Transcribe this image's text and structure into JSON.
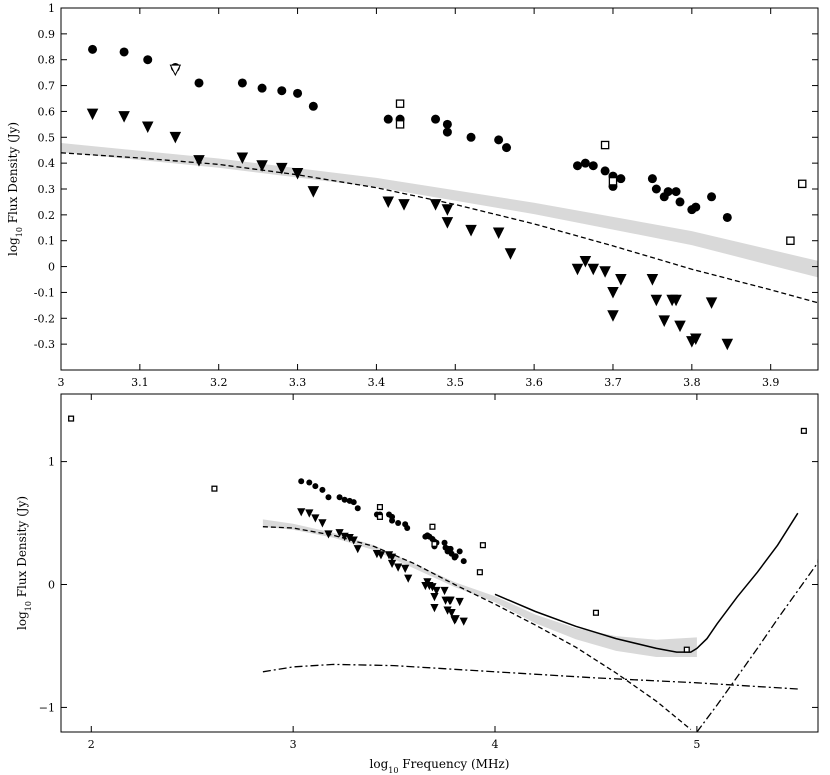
{
  "chart_data": [
    {
      "type": "scatter",
      "title": "",
      "xlabel": "",
      "ylabel": "log10 Flux Density (Jy)",
      "ylabel_parts": {
        "pre": "log",
        "sub": "10",
        "post": " Flux Density (Jy)"
      },
      "xlim": [
        3.0,
        3.96
      ],
      "ylim": [
        -0.4,
        1.0
      ],
      "grid": false,
      "xticks": [
        3.0,
        3.1,
        3.2,
        3.3,
        3.4,
        3.5,
        3.6,
        3.7,
        3.8,
        3.9
      ],
      "xtick_labels": [
        "3",
        "3.1",
        "3.2",
        "3.3",
        "3.4",
        "3.5",
        "3.6",
        "3.7",
        "3.8",
        "3.9"
      ],
      "yticks": [
        -0.3,
        -0.2,
        -0.1,
        0,
        0.1,
        0.2,
        0.3,
        0.4,
        0.5,
        0.6,
        0.7,
        0.8,
        0.9,
        1
      ],
      "ytick_labels": [
        "-0.3",
        "-0.2",
        "-0.1",
        "0",
        "0.1",
        "0.2",
        "0.3",
        "0.4",
        "0.5",
        "0.6",
        "0.7",
        "0.8",
        "0.9",
        "1"
      ],
      "series": [
        {
          "marker": "filled-circle",
          "points": [
            [
              3.04,
              0.84
            ],
            [
              3.08,
              0.83
            ],
            [
              3.11,
              0.8
            ],
            [
              3.145,
              0.77
            ],
            [
              3.175,
              0.71
            ],
            [
              3.23,
              0.71
            ],
            [
              3.255,
              0.69
            ],
            [
              3.28,
              0.68
            ],
            [
              3.3,
              0.67
            ],
            [
              3.32,
              0.62
            ],
            [
              3.415,
              0.57
            ],
            [
              3.43,
              0.57
            ],
            [
              3.475,
              0.57
            ],
            [
              3.49,
              0.55
            ],
            [
              3.49,
              0.52
            ],
            [
              3.52,
              0.5
            ],
            [
              3.555,
              0.49
            ],
            [
              3.565,
              0.46
            ],
            [
              3.655,
              0.39
            ],
            [
              3.665,
              0.4
            ],
            [
              3.675,
              0.39
            ],
            [
              3.69,
              0.37
            ],
            [
              3.7,
              0.35
            ],
            [
              3.7,
              0.31
            ],
            [
              3.71,
              0.34
            ],
            [
              3.75,
              0.34
            ],
            [
              3.755,
              0.3
            ],
            [
              3.765,
              0.27
            ],
            [
              3.77,
              0.29
            ],
            [
              3.78,
              0.29
            ],
            [
              3.785,
              0.25
            ],
            [
              3.8,
              0.22
            ],
            [
              3.805,
              0.23
            ],
            [
              3.825,
              0.27
            ],
            [
              3.845,
              0.19
            ]
          ]
        },
        {
          "marker": "filled-triangle-down",
          "points": [
            [
              3.04,
              0.59
            ],
            [
              3.08,
              0.58
            ],
            [
              3.11,
              0.54
            ],
            [
              3.145,
              0.5
            ],
            [
              3.175,
              0.41
            ],
            [
              3.23,
              0.42
            ],
            [
              3.255,
              0.39
            ],
            [
              3.28,
              0.38
            ],
            [
              3.3,
              0.36
            ],
            [
              3.32,
              0.29
            ],
            [
              3.415,
              0.25
            ],
            [
              3.435,
              0.24
            ],
            [
              3.475,
              0.24
            ],
            [
              3.49,
              0.22
            ],
            [
              3.49,
              0.17
            ],
            [
              3.52,
              0.14
            ],
            [
              3.555,
              0.13
            ],
            [
              3.57,
              0.05
            ],
            [
              3.655,
              -0.01
            ],
            [
              3.665,
              0.02
            ],
            [
              3.675,
              -0.01
            ],
            [
              3.69,
              -0.02
            ],
            [
              3.7,
              -0.1
            ],
            [
              3.7,
              -0.19
            ],
            [
              3.71,
              -0.05
            ],
            [
              3.75,
              -0.05
            ],
            [
              3.755,
              -0.13
            ],
            [
              3.765,
              -0.21
            ],
            [
              3.775,
              -0.13
            ],
            [
              3.78,
              -0.13
            ],
            [
              3.785,
              -0.23
            ],
            [
              3.8,
              -0.29
            ],
            [
              3.805,
              -0.28
            ],
            [
              3.825,
              -0.14
            ],
            [
              3.845,
              -0.3
            ]
          ]
        },
        {
          "marker": "open-triangle-down",
          "points": [
            [
              3.145,
              0.76
            ]
          ]
        },
        {
          "marker": "open-square",
          "points": [
            [
              3.43,
              0.63
            ],
            [
              3.43,
              0.55
            ],
            [
              3.69,
              0.47
            ],
            [
              3.7,
              0.33
            ],
            [
              3.925,
              0.1
            ],
            [
              3.94,
              0.32
            ]
          ]
        }
      ],
      "models": [
        {
          "style": "dashed",
          "points": [
            [
              3.0,
              0.44
            ],
            [
              3.1,
              0.42
            ],
            [
              3.2,
              0.395
            ],
            [
              3.3,
              0.355
            ],
            [
              3.4,
              0.305
            ],
            [
              3.5,
              0.24
            ],
            [
              3.6,
              0.165
            ],
            [
              3.7,
              0.08
            ],
            [
              3.8,
              -0.01
            ],
            [
              3.9,
              -0.09
            ],
            [
              3.96,
              -0.14
            ]
          ]
        },
        {
          "style": "grey-band",
          "points": [
            [
              3.0,
              0.46
            ],
            [
              3.2,
              0.4
            ],
            [
              3.4,
              0.325
            ],
            [
              3.6,
              0.225
            ],
            [
              3.8,
              0.11
            ],
            [
              3.96,
              -0.01
            ]
          ],
          "half_width": [
            0.018,
            0.018,
            0.018,
            0.022,
            0.027,
            0.032
          ]
        }
      ]
    },
    {
      "type": "scatter",
      "title": "",
      "xlabel": "log10 Frequency (MHz)",
      "xlabel_parts": {
        "pre": "log",
        "sub": "10",
        "post": " Frequency (MHz)"
      },
      "ylabel": "log10 Flux Density (Jy)",
      "ylabel_parts": {
        "pre": "log",
        "sub": "10",
        "post": " Flux Density (Jy)"
      },
      "xlim": [
        1.85,
        5.6
      ],
      "ylim": [
        -1.2,
        1.55
      ],
      "grid": false,
      "xticks": [
        2,
        3,
        4,
        5
      ],
      "xtick_labels": [
        "2",
        "3",
        "4",
        "5"
      ],
      "yticks": [
        -1,
        0,
        1
      ],
      "ytick_labels": [
        "−1",
        "0",
        "1"
      ],
      "series": [
        {
          "marker": "filled-circle",
          "points": [
            [
              3.04,
              0.84
            ],
            [
              3.08,
              0.83
            ],
            [
              3.11,
              0.8
            ],
            [
              3.145,
              0.77
            ],
            [
              3.175,
              0.71
            ],
            [
              3.23,
              0.71
            ],
            [
              3.255,
              0.69
            ],
            [
              3.28,
              0.68
            ],
            [
              3.3,
              0.67
            ],
            [
              3.32,
              0.62
            ],
            [
              3.415,
              0.57
            ],
            [
              3.43,
              0.57
            ],
            [
              3.475,
              0.57
            ],
            [
              3.49,
              0.55
            ],
            [
              3.49,
              0.52
            ],
            [
              3.52,
              0.5
            ],
            [
              3.555,
              0.49
            ],
            [
              3.565,
              0.46
            ],
            [
              3.655,
              0.39
            ],
            [
              3.665,
              0.4
            ],
            [
              3.675,
              0.39
            ],
            [
              3.69,
              0.37
            ],
            [
              3.7,
              0.35
            ],
            [
              3.7,
              0.31
            ],
            [
              3.71,
              0.34
            ],
            [
              3.75,
              0.34
            ],
            [
              3.755,
              0.3
            ],
            [
              3.765,
              0.27
            ],
            [
              3.77,
              0.29
            ],
            [
              3.78,
              0.29
            ],
            [
              3.785,
              0.25
            ],
            [
              3.8,
              0.22
            ],
            [
              3.805,
              0.23
            ],
            [
              3.825,
              0.27
            ],
            [
              3.845,
              0.19
            ]
          ]
        },
        {
          "marker": "filled-triangle-down",
          "points": [
            [
              3.04,
              0.59
            ],
            [
              3.08,
              0.58
            ],
            [
              3.11,
              0.54
            ],
            [
              3.145,
              0.5
            ],
            [
              3.175,
              0.41
            ],
            [
              3.23,
              0.42
            ],
            [
              3.255,
              0.39
            ],
            [
              3.28,
              0.38
            ],
            [
              3.3,
              0.36
            ],
            [
              3.32,
              0.29
            ],
            [
              3.415,
              0.25
            ],
            [
              3.435,
              0.24
            ],
            [
              3.475,
              0.24
            ],
            [
              3.49,
              0.22
            ],
            [
              3.49,
              0.17
            ],
            [
              3.52,
              0.14
            ],
            [
              3.555,
              0.13
            ],
            [
              3.57,
              0.05
            ],
            [
              3.655,
              -0.01
            ],
            [
              3.665,
              0.02
            ],
            [
              3.675,
              -0.01
            ],
            [
              3.69,
              -0.02
            ],
            [
              3.7,
              -0.1
            ],
            [
              3.7,
              -0.19
            ],
            [
              3.71,
              -0.05
            ],
            [
              3.75,
              -0.05
            ],
            [
              3.755,
              -0.13
            ],
            [
              3.765,
              -0.21
            ],
            [
              3.775,
              -0.13
            ],
            [
              3.78,
              -0.13
            ],
            [
              3.785,
              -0.23
            ],
            [
              3.8,
              -0.29
            ],
            [
              3.805,
              -0.28
            ],
            [
              3.825,
              -0.14
            ],
            [
              3.845,
              -0.3
            ]
          ]
        },
        {
          "marker": "open-square",
          "points": [
            [
              1.9,
              1.35
            ],
            [
              2.61,
              0.78
            ],
            [
              3.43,
              0.63
            ],
            [
              3.43,
              0.55
            ],
            [
              3.69,
              0.47
            ],
            [
              3.7,
              0.33
            ],
            [
              3.925,
              0.1
            ],
            [
              3.94,
              0.32
            ],
            [
              4.5,
              -0.23
            ],
            [
              4.95,
              -0.53
            ],
            [
              5.53,
              1.25
            ]
          ]
        }
      ],
      "models": [
        {
          "style": "dashed",
          "points": [
            [
              2.85,
              0.47
            ],
            [
              3.0,
              0.46
            ],
            [
              3.2,
              0.4
            ],
            [
              3.4,
              0.31
            ],
            [
              3.6,
              0.17
            ],
            [
              3.8,
              0.0
            ],
            [
              4.0,
              -0.16
            ],
            [
              4.2,
              -0.33
            ],
            [
              4.4,
              -0.51
            ],
            [
              4.6,
              -0.72
            ],
            [
              4.8,
              -0.95
            ],
            [
              4.97,
              -1.18
            ]
          ]
        },
        {
          "style": "grey-band",
          "points": [
            [
              2.85,
              0.5
            ],
            [
              3.0,
              0.47
            ],
            [
              3.2,
              0.4
            ],
            [
              3.4,
              0.3
            ],
            [
              3.6,
              0.15
            ],
            [
              3.8,
              0.0
            ],
            [
              4.0,
              -0.12
            ],
            [
              4.2,
              -0.28
            ],
            [
              4.4,
              -0.4
            ],
            [
              4.6,
              -0.48
            ],
            [
              4.8,
              -0.52
            ],
            [
              5.0,
              -0.51
            ]
          ],
          "half_width": [
            0.03,
            0.025,
            0.02,
            0.02,
            0.02,
            0.02,
            0.025,
            0.035,
            0.045,
            0.06,
            0.07,
            0.08
          ]
        },
        {
          "style": "solid",
          "points": [
            [
              4.0,
              -0.08
            ],
            [
              4.2,
              -0.22
            ],
            [
              4.4,
              -0.34
            ],
            [
              4.6,
              -0.44
            ],
            [
              4.8,
              -0.52
            ],
            [
              4.9,
              -0.55
            ],
            [
              4.97,
              -0.55
            ],
            [
              5.0,
              -0.52
            ],
            [
              5.05,
              -0.44
            ],
            [
              5.1,
              -0.32
            ],
            [
              5.2,
              -0.1
            ],
            [
              5.3,
              0.1
            ],
            [
              5.4,
              0.32
            ],
            [
              5.5,
              0.58
            ]
          ]
        },
        {
          "style": "dash-dot",
          "points": [
            [
              2.85,
              -0.71
            ],
            [
              3.0,
              -0.67
            ],
            [
              3.2,
              -0.65
            ],
            [
              3.5,
              -0.66
            ],
            [
              4.0,
              -0.71
            ],
            [
              4.5,
              -0.76
            ],
            [
              5.0,
              -0.8
            ],
            [
              5.5,
              -0.85
            ]
          ]
        },
        {
          "style": "dash-dot",
          "points": [
            [
              5.0,
              -1.2
            ],
            [
              5.1,
              -0.98
            ],
            [
              5.2,
              -0.75
            ],
            [
              5.3,
              -0.52
            ],
            [
              5.4,
              -0.28
            ],
            [
              5.5,
              -0.05
            ],
            [
              5.6,
              0.18
            ],
            [
              5.62,
              1.02
            ]
          ]
        }
      ]
    }
  ]
}
